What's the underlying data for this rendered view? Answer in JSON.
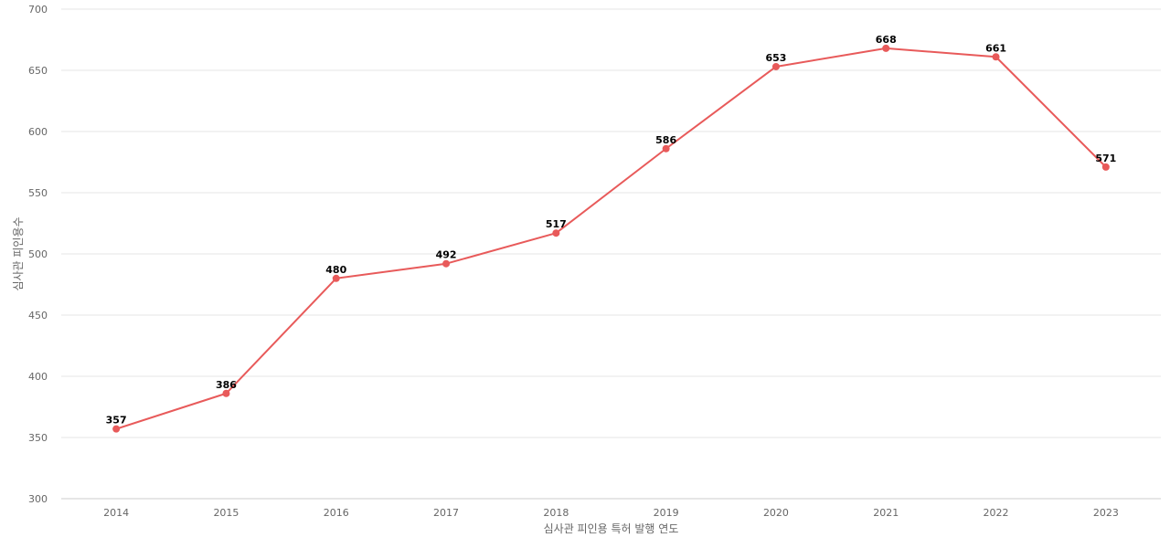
{
  "chart_data": {
    "type": "line",
    "title": "",
    "xlabel": "심사관 피인용 특허 발행 연도",
    "ylabel": "심사관 피인용수",
    "x": [
      "2014",
      "2015",
      "2016",
      "2017",
      "2018",
      "2019",
      "2020",
      "2021",
      "2022",
      "2023"
    ],
    "series": [
      {
        "values": [
          357,
          386,
          480,
          492,
          517,
          586,
          653,
          668,
          661,
          571
        ],
        "color": "#e85a5a"
      }
    ],
    "ylim": [
      300,
      700
    ],
    "yticks": [
      300,
      350,
      400,
      450,
      500,
      550,
      600,
      650,
      700
    ],
    "grid": true,
    "legend": "none"
  }
}
